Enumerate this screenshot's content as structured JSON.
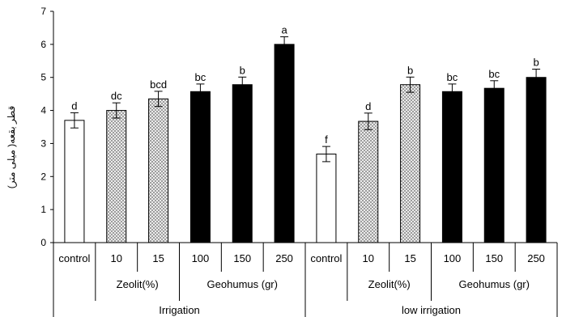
{
  "chart_data": {
    "type": "bar",
    "ylabel": "قطر بقعه( میلی متر)",
    "ylim": [
      0,
      7
    ],
    "yticks": [
      0,
      1,
      2,
      3,
      4,
      5,
      6,
      7
    ],
    "grid": false,
    "categories": [
      "control",
      "10",
      "15",
      "100",
      "150",
      "250",
      "control",
      "10",
      "15",
      "100",
      "150",
      "250"
    ],
    "values": [
      3.7,
      4.0,
      4.35,
      4.57,
      4.78,
      6.0,
      2.68,
      3.67,
      4.78,
      4.57,
      4.67,
      5.0
    ],
    "errors": [
      0.23,
      0.23,
      0.23,
      0.23,
      0.23,
      0.23,
      0.23,
      0.25,
      0.23,
      0.23,
      0.23,
      0.25
    ],
    "labels": [
      "d",
      "dc",
      "bcd",
      "bc",
      "b",
      "a",
      "f",
      "d",
      "b",
      "bc",
      "bc",
      "b"
    ],
    "fills": [
      "white",
      "hatch",
      "hatch",
      "black",
      "black",
      "black",
      "white",
      "hatch",
      "hatch",
      "black",
      "black",
      "black"
    ],
    "subgroups": [
      {
        "label": "Zeolit(%)",
        "from": 1,
        "to": 2
      },
      {
        "label": "Geohumus (gr)",
        "from": 3,
        "to": 5
      },
      {
        "label": "Zeolit(%)",
        "from": 7,
        "to": 8
      },
      {
        "label": "Geohumus (gr)",
        "from": 9,
        "to": 11
      }
    ],
    "groups": [
      {
        "label": "Irrigation",
        "from": 0,
        "to": 5
      },
      {
        "label": "low irrigation",
        "from": 6,
        "to": 11
      }
    ]
  }
}
